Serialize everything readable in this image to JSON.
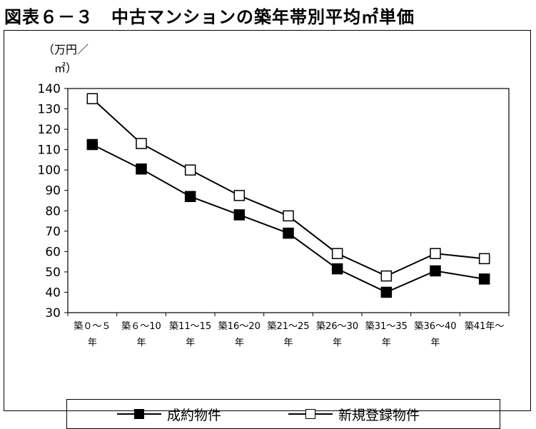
{
  "title": "図表６－３　中古マンションの築年帯別平均㎡単価",
  "chart_data": {
    "type": "line",
    "ylabel_line1": "（万円／",
    "ylabel_line2": "㎡）",
    "ylim": [
      30,
      140
    ],
    "ytick_step": 10,
    "grid": false,
    "legend_position": "bottom",
    "categories": [
      [
        "築０～５",
        "年"
      ],
      [
        "築６～10",
        "年"
      ],
      [
        "築11～15",
        "年"
      ],
      [
        "築16～20",
        "年"
      ],
      [
        "築21～25",
        "年"
      ],
      [
        "築26～30",
        "年"
      ],
      [
        "築31～35",
        "年"
      ],
      [
        "築36～40",
        "年"
      ],
      [
        "築41年～",
        ""
      ]
    ],
    "series": [
      {
        "name": "成約物件",
        "marker": "filled-square",
        "color": "#000000",
        "values": [
          112.5,
          100.5,
          87,
          78,
          69,
          51.5,
          40,
          50.5,
          46.5
        ]
      },
      {
        "name": "新規登録物件",
        "marker": "open-square",
        "color": "#000000",
        "values": [
          135,
          113,
          100,
          87.5,
          77.5,
          59,
          48,
          59,
          56.5
        ]
      }
    ]
  }
}
